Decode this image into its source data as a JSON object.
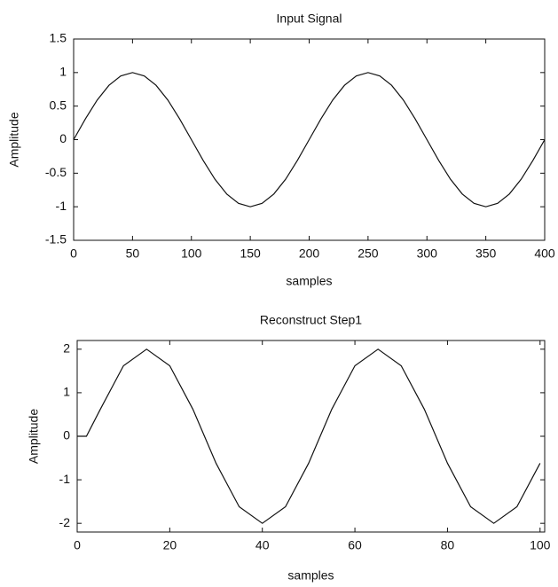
{
  "chart_data": [
    {
      "type": "line",
      "title": "Input Signal",
      "x_label": "samples",
      "y_label": "Amplitude",
      "x": [
        0,
        10,
        20,
        30,
        40,
        50,
        60,
        70,
        80,
        90,
        100,
        110,
        120,
        130,
        140,
        150,
        160,
        170,
        180,
        190,
        200,
        210,
        220,
        230,
        240,
        250,
        260,
        270,
        280,
        290,
        300,
        310,
        320,
        330,
        340,
        350,
        360,
        370,
        380,
        390,
        400
      ],
      "series": [
        {
          "color": "#111111",
          "values": [
            0,
            0.31,
            0.59,
            0.81,
            0.95,
            1,
            0.95,
            0.81,
            0.59,
            0.31,
            0,
            -0.31,
            -0.59,
            -0.81,
            -0.95,
            -1,
            -0.95,
            -0.81,
            -0.59,
            -0.31,
            0,
            0.31,
            0.59,
            0.81,
            0.95,
            1,
            0.95,
            0.81,
            0.59,
            0.31,
            0,
            -0.31,
            -0.59,
            -0.81,
            -0.95,
            -1,
            -0.95,
            -0.81,
            -0.59,
            -0.31,
            0
          ]
        }
      ],
      "xlim": [
        0,
        400
      ],
      "xticks": [
        0,
        50,
        100,
        150,
        200,
        250,
        300,
        350,
        400
      ],
      "ylim": [
        -1.5,
        1.5
      ],
      "yticks": [
        -1.5,
        -1,
        -0.5,
        0,
        0.5,
        1,
        1.5
      ],
      "grid": false
    },
    {
      "type": "line",
      "title": "Reconstruct Step1",
      "x_label": "samples",
      "y_label": "Amplitude",
      "x": [
        0,
        2,
        5,
        10,
        15,
        20,
        25,
        30,
        35,
        40,
        45,
        50,
        55,
        60,
        65,
        70,
        75,
        80,
        85,
        90,
        95,
        100
      ],
      "series": [
        {
          "color": "#111111",
          "values": [
            0,
            0,
            0.62,
            1.62,
            2,
            1.62,
            0.62,
            -0.62,
            -1.62,
            -2,
            -1.62,
            -0.62,
            0.62,
            1.62,
            2,
            1.62,
            0.62,
            -0.62,
            -1.62,
            -2,
            -1.62,
            -0.62
          ]
        }
      ],
      "xlim": [
        0,
        101
      ],
      "xticks": [
        0,
        20,
        40,
        60,
        80,
        100
      ],
      "ylim": [
        -2.2,
        2.2
      ],
      "yticks": [
        -2,
        -1,
        0,
        1,
        2
      ],
      "grid": false
    }
  ]
}
